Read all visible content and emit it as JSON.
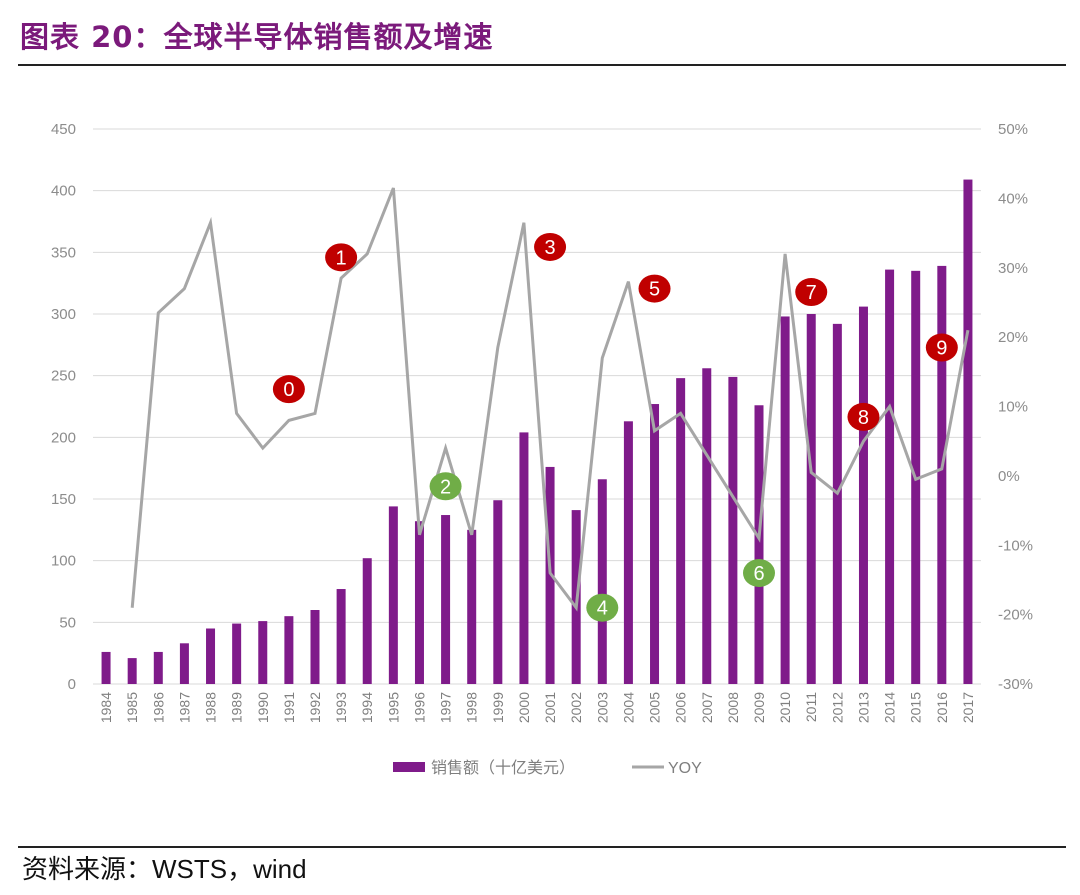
{
  "header": {
    "title": "图表 20：全球半导体销售额及增速"
  },
  "footer": {
    "source_label": "资料来源：",
    "source_value": "WSTS，wind"
  },
  "chart_data": {
    "type": "bar+line",
    "title": "全球半导体销售额及增速",
    "categories": [
      "1984",
      "1985",
      "1986",
      "1987",
      "1988",
      "1989",
      "1990",
      "1991",
      "1992",
      "1993",
      "1994",
      "1995",
      "1996",
      "1997",
      "1998",
      "1999",
      "2000",
      "2001",
      "2002",
      "2003",
      "2004",
      "2005",
      "2006",
      "2007",
      "2008",
      "2009",
      "2010",
      "2011",
      "2012",
      "2013",
      "2014",
      "2015",
      "2016",
      "2017"
    ],
    "series": [
      {
        "name": "销售额（十亿美元）",
        "type": "bar",
        "axis": "left",
        "color": "#7f1b8a",
        "values": [
          26,
          21,
          26,
          33,
          45,
          49,
          51,
          55,
          60,
          77,
          102,
          144,
          132,
          137,
          125,
          149,
          204,
          176,
          141,
          166,
          213,
          227,
          248,
          256,
          249,
          226,
          298,
          300,
          292,
          306,
          336,
          335,
          339,
          409
        ]
      },
      {
        "name": "YOY",
        "type": "line",
        "axis": "right",
        "color": "#a6a6a6",
        "values": [
          null,
          -19,
          23.5,
          27,
          36.5,
          9,
          4,
          8,
          9,
          28.5,
          32,
          41.5,
          -8.5,
          4,
          -8.5,
          18.5,
          36.5,
          -14,
          -19,
          17,
          28,
          6.5,
          9,
          3,
          -3,
          -9,
          32,
          0.5,
          -2.5,
          5,
          10,
          -0.5,
          1,
          21
        ]
      }
    ],
    "y_left": {
      "min": 0,
      "max": 450,
      "ticks": [
        "0",
        "50",
        "100",
        "150",
        "200",
        "250",
        "300",
        "350",
        "400",
        "450"
      ]
    },
    "y_right": {
      "min": -30,
      "max": 50,
      "ticks": [
        "-30%",
        "-20%",
        "-10%",
        "0%",
        "10%",
        "20%",
        "30%",
        "40%",
        "50%"
      ]
    },
    "legend": {
      "position": "bottom",
      "bar_label": "销售额（十亿美元）",
      "line_label": "YOY"
    },
    "annotations": [
      {
        "label": "0",
        "year": "1991",
        "yoy": 12.5,
        "color": "#c00000"
      },
      {
        "label": "1",
        "year": "1993",
        "yoy": 31.5,
        "color": "#c00000"
      },
      {
        "label": "2",
        "year": "1997",
        "yoy": -1.5,
        "color": "#70ad47"
      },
      {
        "label": "3",
        "year": "2001",
        "yoy": 33,
        "color": "#c00000"
      },
      {
        "label": "4",
        "year": "2003",
        "yoy": -19,
        "color": "#70ad47"
      },
      {
        "label": "5",
        "year": "2005",
        "yoy": 27,
        "color": "#c00000"
      },
      {
        "label": "6",
        "year": "2009",
        "yoy": -14,
        "color": "#70ad47"
      },
      {
        "label": "7",
        "year": "2011",
        "yoy": 26.5,
        "color": "#c00000"
      },
      {
        "label": "8",
        "year": "2013",
        "yoy": 8.5,
        "color": "#c00000"
      },
      {
        "label": "9",
        "year": "2016",
        "yoy": 18.5,
        "color": "#c00000"
      }
    ]
  }
}
